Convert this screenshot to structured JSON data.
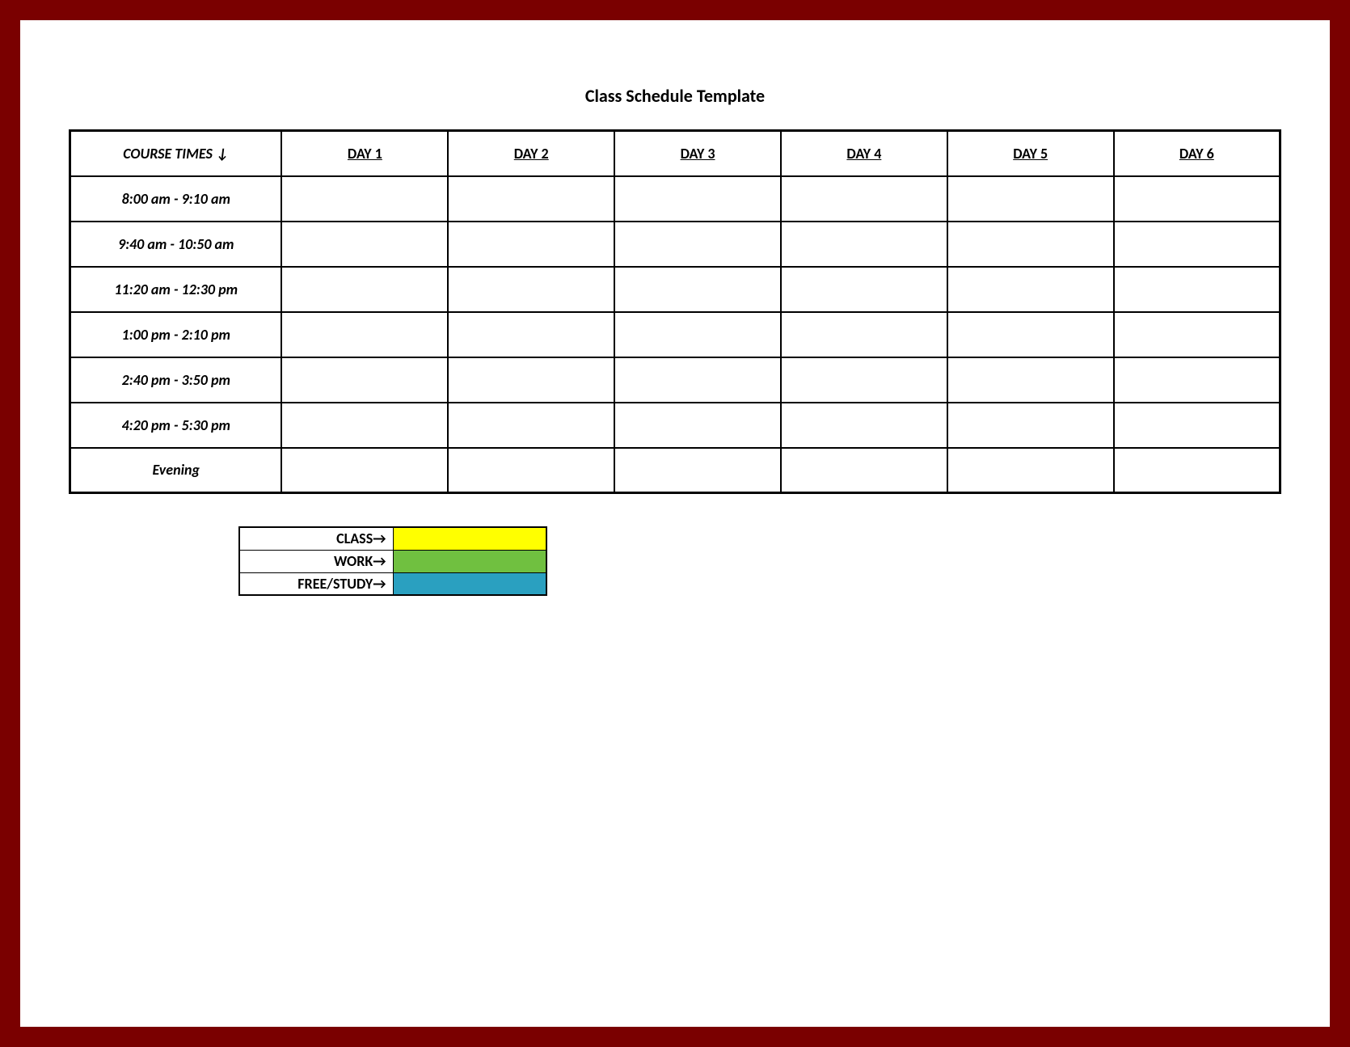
{
  "title": "Class Schedule Template",
  "table": {
    "header": {
      "course_times_label": "COURSE TIMES  ↓",
      "days": [
        "DAY 1",
        "DAY 2",
        "DAY 3",
        "DAY 4",
        "DAY 5",
        "DAY 6"
      ]
    },
    "rows": [
      {
        "time": "8:00 am - 9:10 am",
        "cells": [
          "",
          "",
          "",
          "",
          "",
          ""
        ]
      },
      {
        "time": "9:40 am - 10:50 am",
        "cells": [
          "",
          "",
          "",
          "",
          "",
          ""
        ]
      },
      {
        "time": "11:20 am - 12:30 pm",
        "cells": [
          "",
          "",
          "",
          "",
          "",
          ""
        ]
      },
      {
        "time": "1:00 pm - 2:10 pm",
        "cells": [
          "",
          "",
          "",
          "",
          "",
          ""
        ]
      },
      {
        "time": "2:40 pm - 3:50 pm",
        "cells": [
          "",
          "",
          "",
          "",
          "",
          ""
        ]
      },
      {
        "time": "4:20 pm - 5:30 pm",
        "cells": [
          "",
          "",
          "",
          "",
          "",
          ""
        ]
      },
      {
        "time": "Evening",
        "cells": [
          "",
          "",
          "",
          "",
          "",
          ""
        ]
      }
    ],
    "border_color": "#000000",
    "background_color": "#ffffff"
  },
  "legend": {
    "items": [
      {
        "label": "CLASS→",
        "color": "#ffff00"
      },
      {
        "label": "WORK→",
        "color": "#70c040"
      },
      {
        "label": "FREE/STUDY→",
        "color": "#2aa0c0"
      }
    ]
  },
  "frame": {
    "outer_color": "#7a0000",
    "inner_color": "#ffffff"
  }
}
